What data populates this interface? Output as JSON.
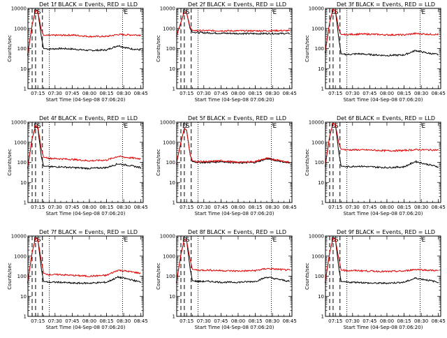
{
  "colors": {
    "events": "#000000",
    "lld": "#e00000",
    "background": "#ffffff"
  },
  "chart_data": [
    {
      "type": "line",
      "title": "Det 1f BLACK = Events, RED = LLD",
      "ylabel": "Counts/sec",
      "xlabel": "Start Time (04-Sep-08 07:06:20)",
      "y_scale": "log",
      "ylim": [
        1,
        10000
      ],
      "x_ticks": [
        "07:15",
        "07:30",
        "07:45",
        "08:00",
        "08:15",
        "08:30",
        "08:45"
      ],
      "y_ticks": [
        "1",
        "10",
        "100",
        "1000",
        "10000"
      ],
      "markers": [
        "D",
        "S",
        "E"
      ],
      "x": [
        "07:06",
        "07:10",
        "07:13",
        "07:15",
        "07:18",
        "07:20",
        "07:25",
        "07:35",
        "07:45",
        "08:00",
        "08:15",
        "08:25",
        "08:35",
        "08:45"
      ],
      "series": [
        {
          "name": "Events",
          "values": [
            45,
            1500,
            8000,
            7000,
            400,
            100,
            95,
            100,
            95,
            80,
            85,
            140,
            100,
            85
          ]
        },
        {
          "name": "LLD",
          "values": [
            45,
            1500,
            8000,
            7000,
            900,
            450,
            450,
            460,
            470,
            400,
            400,
            500,
            480,
            470
          ]
        }
      ]
    },
    {
      "type": "line",
      "title": "Det 2f BLACK = Events, RED = LLD",
      "ylabel": "Counts/sec",
      "xlabel": "Start Time (04-Sep-08 07:06:20)",
      "y_scale": "log",
      "ylim": [
        1,
        10000
      ],
      "x_ticks": [
        "07:15",
        "07:30",
        "07:45",
        "08:00",
        "08:15",
        "08:30",
        "08:45"
      ],
      "y_ticks": [
        "1",
        "10",
        "100",
        "1000",
        "10000"
      ],
      "markers": [
        "D",
        "S",
        "E"
      ],
      "x": [
        "07:06",
        "07:10",
        "07:13",
        "07:15",
        "07:18",
        "07:20",
        "07:25",
        "07:35",
        "07:45",
        "08:00",
        "08:15",
        "08:25",
        "08:35",
        "08:45"
      ],
      "series": [
        {
          "name": "Events",
          "values": [
            400,
            2000,
            7000,
            6000,
            1000,
            650,
            620,
            600,
            580,
            560,
            550,
            560,
            560,
            560
          ]
        },
        {
          "name": "LLD",
          "values": [
            400,
            2000,
            7000,
            6000,
            1200,
            800,
            780,
            780,
            770,
            760,
            760,
            770,
            780,
            770
          ]
        }
      ]
    },
    {
      "type": "line",
      "title": "Det 3f BLACK = Events, RED = LLD",
      "ylabel": "Counts/sec",
      "xlabel": "Start Time (04-Sep-08 07:06:20)",
      "y_scale": "log",
      "ylim": [
        1,
        10000
      ],
      "x_ticks": [
        "07:15",
        "07:30",
        "07:45",
        "08:00",
        "08:15",
        "08:30",
        "08:45"
      ],
      "y_ticks": [
        "1",
        "10",
        "100",
        "1000",
        "10000"
      ],
      "markers": [
        "D",
        "S",
        "E"
      ],
      "x": [
        "07:06",
        "07:10",
        "07:13",
        "07:15",
        "07:18",
        "07:20",
        "07:25",
        "07:35",
        "07:45",
        "08:00",
        "08:15",
        "08:25",
        "08:35",
        "08:45"
      ],
      "series": [
        {
          "name": "Events",
          "values": [
            60,
            2000,
            9000,
            8000,
            300,
            55,
            50,
            55,
            50,
            45,
            48,
            80,
            60,
            50
          ]
        },
        {
          "name": "LLD",
          "values": [
            60,
            2000,
            9000,
            8000,
            900,
            500,
            500,
            520,
            520,
            480,
            480,
            560,
            520,
            500
          ]
        }
      ]
    },
    {
      "type": "line",
      "title": "Det 4f BLACK = Events, RED = LLD",
      "ylabel": "Counts/sec",
      "xlabel": "Start Time (04-Sep-08 07:06:20)",
      "y_scale": "log",
      "ylim": [
        1,
        10000
      ],
      "x_ticks": [
        "07:15",
        "07:30",
        "07:45",
        "08:00",
        "08:15",
        "08:30",
        "08:45"
      ],
      "y_ticks": [
        "1",
        "10",
        "100",
        "1000",
        "10000"
      ],
      "markers": [
        "D",
        "S",
        "E"
      ],
      "x": [
        "07:06",
        "07:10",
        "07:13",
        "07:15",
        "07:18",
        "07:20",
        "07:25",
        "07:35",
        "07:45",
        "08:00",
        "08:15",
        "08:25",
        "08:35",
        "08:45"
      ],
      "series": [
        {
          "name": "Events",
          "values": [
            50,
            1500,
            6000,
            5000,
            200,
            65,
            60,
            60,
            55,
            50,
            55,
            85,
            70,
            55
          ]
        },
        {
          "name": "LLD",
          "values": [
            50,
            1500,
            7000,
            6000,
            500,
            180,
            160,
            150,
            140,
            120,
            130,
            200,
            170,
            150
          ]
        }
      ]
    },
    {
      "type": "line",
      "title": "Det 5f BLACK = Events, RED = LLD",
      "ylabel": "Counts/sec",
      "xlabel": "Start Time (04-Sep-08 07:06:20)",
      "y_scale": "log",
      "ylim": [
        1,
        10000
      ],
      "x_ticks": [
        "07:15",
        "07:30",
        "07:45",
        "08:00",
        "08:15",
        "08:30",
        "08:45"
      ],
      "y_ticks": [
        "1",
        "10",
        "100",
        "1000",
        "10000"
      ],
      "markers": [
        "D",
        "S",
        "E"
      ],
      "x": [
        "07:06",
        "07:10",
        "07:13",
        "07:15",
        "07:18",
        "07:20",
        "07:25",
        "07:35",
        "07:45",
        "08:00",
        "08:15",
        "08:25",
        "08:35",
        "08:45"
      ],
      "series": [
        {
          "name": "Events",
          "values": [
            80,
            1000,
            5000,
            4000,
            250,
            110,
            100,
            100,
            110,
            95,
            100,
            150,
            120,
            90
          ]
        },
        {
          "name": "LLD",
          "values": [
            80,
            1000,
            5000,
            4000,
            260,
            120,
            110,
            110,
            120,
            100,
            110,
            160,
            130,
            100
          ]
        }
      ]
    },
    {
      "type": "line",
      "title": "Det 6f BLACK = Events, RED = LLD",
      "ylabel": "Counts/sec",
      "xlabel": "Start Time (04-Sep-08 07:06:20)",
      "y_scale": "log",
      "ylim": [
        1,
        10000
      ],
      "x_ticks": [
        "07:15",
        "07:30",
        "07:45",
        "08:00",
        "08:15",
        "08:30",
        "08:45"
      ],
      "y_ticks": [
        "1",
        "10",
        "100",
        "1000",
        "10000"
      ],
      "markers": [
        "D",
        "S",
        "E"
      ],
      "x": [
        "07:06",
        "07:10",
        "07:13",
        "07:15",
        "07:18",
        "07:20",
        "07:25",
        "07:35",
        "07:45",
        "08:00",
        "08:15",
        "08:25",
        "08:35",
        "08:45"
      ],
      "series": [
        {
          "name": "Events",
          "values": [
            60,
            2000,
            9000,
            8000,
            300,
            65,
            60,
            65,
            60,
            55,
            60,
            110,
            80,
            60
          ]
        },
        {
          "name": "LLD",
          "values": [
            60,
            2000,
            9000,
            8000,
            900,
            450,
            420,
            420,
            410,
            380,
            390,
            430,
            420,
            410
          ]
        }
      ]
    },
    {
      "type": "line",
      "title": "Det 7f BLACK = Events, RED = LLD",
      "ylabel": "Counts/sec",
      "xlabel": "Start Time (04-Sep-08 07:06:20)",
      "y_scale": "log",
      "ylim": [
        1,
        10000
      ],
      "x_ticks": [
        "07:15",
        "07:30",
        "07:45",
        "08:00",
        "08:15",
        "08:30",
        "08:45"
      ],
      "y_ticks": [
        "1",
        "10",
        "100",
        "1000",
        "10000"
      ],
      "markers": [
        "D",
        "S",
        "E"
      ],
      "x": [
        "07:06",
        "07:10",
        "07:13",
        "07:15",
        "07:18",
        "07:20",
        "07:25",
        "07:35",
        "07:45",
        "08:00",
        "08:15",
        "08:25",
        "08:35",
        "08:45"
      ],
      "series": [
        {
          "name": "Events",
          "values": [
            45,
            1500,
            8000,
            7000,
            250,
            55,
            50,
            50,
            45,
            45,
            50,
            90,
            70,
            50
          ]
        },
        {
          "name": "LLD",
          "values": [
            45,
            1500,
            8000,
            7000,
            600,
            140,
            120,
            120,
            110,
            100,
            110,
            200,
            170,
            140
          ]
        }
      ]
    },
    {
      "type": "line",
      "title": "Det 8f BLACK = Events, RED = LLD",
      "ylabel": "Counts/sec",
      "xlabel": "Start Time (04-Sep-08 07:06:20)",
      "y_scale": "log",
      "ylim": [
        1,
        10000
      ],
      "x_ticks": [
        "07:15",
        "07:30",
        "07:45",
        "08:00",
        "08:15",
        "08:30",
        "08:45"
      ],
      "y_ticks": [
        "1",
        "10",
        "100",
        "1000",
        "10000"
      ],
      "markers": [
        "D",
        "S",
        "E"
      ],
      "x": [
        "07:06",
        "07:10",
        "07:13",
        "07:15",
        "07:18",
        "07:20",
        "07:25",
        "07:35",
        "07:45",
        "08:00",
        "08:15",
        "08:25",
        "08:35",
        "08:45"
      ],
      "series": [
        {
          "name": "Events",
          "values": [
            45,
            1200,
            7000,
            6000,
            250,
            60,
            55,
            55,
            50,
            50,
            55,
            90,
            70,
            55
          ]
        },
        {
          "name": "LLD",
          "values": [
            45,
            1200,
            7000,
            6000,
            700,
            220,
            200,
            200,
            190,
            180,
            190,
            240,
            220,
            200
          ]
        }
      ]
    },
    {
      "type": "line",
      "title": "Det 9f BLACK = Events, RED = LLD",
      "ylabel": "Counts/sec",
      "xlabel": "Start Time (04-Sep-08 07:06:20)",
      "y_scale": "log",
      "ylim": [
        1,
        10000
      ],
      "x_ticks": [
        "07:15",
        "07:30",
        "07:45",
        "08:00",
        "08:15",
        "08:30",
        "08:45"
      ],
      "y_ticks": [
        "1",
        "10",
        "100",
        "1000",
        "10000"
      ],
      "markers": [
        "D",
        "S",
        "E"
      ],
      "x": [
        "07:06",
        "07:10",
        "07:13",
        "07:15",
        "07:18",
        "07:20",
        "07:25",
        "07:35",
        "07:45",
        "08:00",
        "08:15",
        "08:25",
        "08:35",
        "08:45"
      ],
      "series": [
        {
          "name": "Events",
          "values": [
            45,
            1500,
            8000,
            7000,
            250,
            55,
            50,
            50,
            45,
            45,
            50,
            80,
            65,
            50
          ]
        },
        {
          "name": "LLD",
          "values": [
            45,
            1500,
            8000,
            7000,
            700,
            200,
            190,
            190,
            180,
            170,
            180,
            220,
            200,
            190
          ]
        }
      ]
    }
  ]
}
